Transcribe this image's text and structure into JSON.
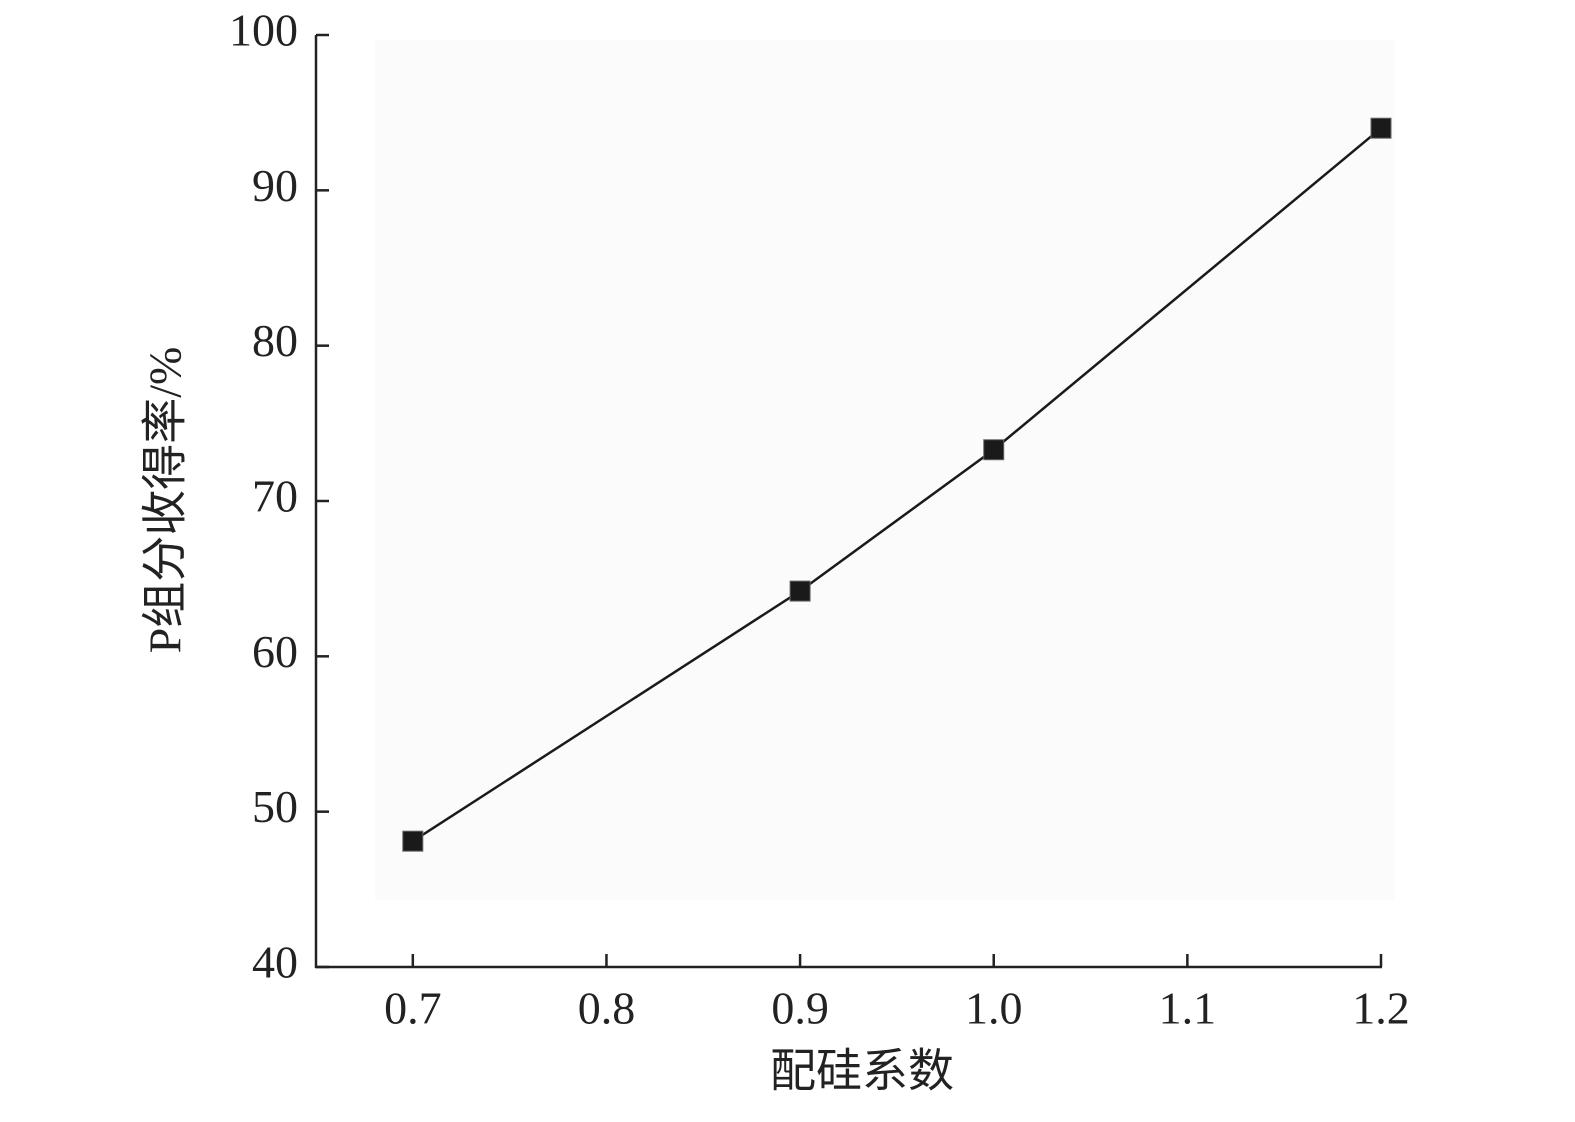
{
  "chart_data": {
    "type": "line",
    "x_label": "配硅系数",
    "y_label": "P组分收得率/%",
    "x": [
      0.7,
      0.9,
      1.0,
      1.2
    ],
    "series": [
      {
        "name": "P",
        "color": "#1a1a1a",
        "values": [
          48.1,
          64.2,
          73.3,
          94.0
        ]
      }
    ],
    "xlim": [
      0.65,
      1.2
    ],
    "xticks": [
      0.7,
      0.8,
      0.9,
      {
        "value": 1,
        "label": "1.0"
      },
      1.1,
      1.2
    ],
    "ylim": [
      40,
      100
    ],
    "yticks": [
      40,
      50,
      60,
      70,
      80,
      90,
      100
    ],
    "grid": false
  }
}
